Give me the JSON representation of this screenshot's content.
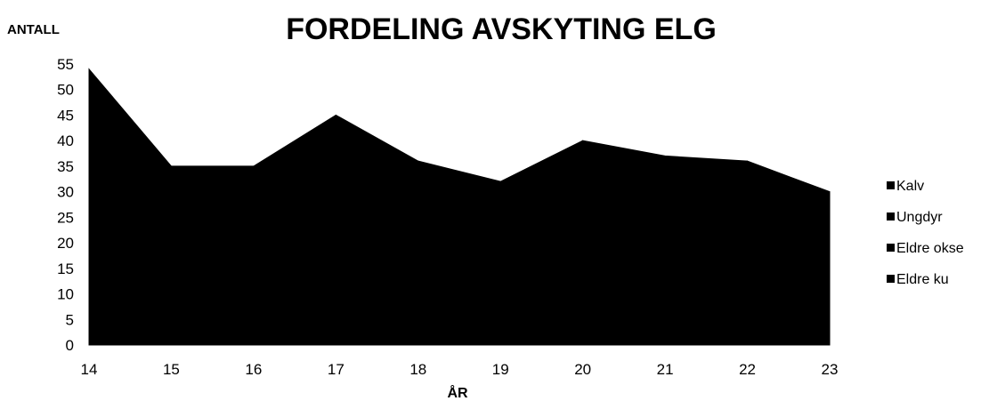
{
  "chart_data": {
    "type": "area",
    "stacked": true,
    "title": "FORDELING AVSKYTING ELG",
    "ylabel": "ANTALL",
    "xlabel": "ÅR",
    "x": [
      "14",
      "15",
      "16",
      "17",
      "18",
      "19",
      "20",
      "21",
      "22",
      "23"
    ],
    "ylim": [
      0,
      55
    ],
    "yticks": [
      0,
      5,
      10,
      15,
      20,
      25,
      30,
      35,
      40,
      45,
      50,
      55
    ],
    "total": [
      54,
      35,
      35,
      45,
      36,
      32,
      40,
      37,
      36,
      30
    ],
    "series": [
      {
        "name": "Kalv"
      },
      {
        "name": "Ungdyr"
      },
      {
        "name": "Eldre okse"
      },
      {
        "name": "Eldre ku"
      }
    ],
    "legend_position": "right",
    "grid": false,
    "fill_color": "#000000"
  }
}
